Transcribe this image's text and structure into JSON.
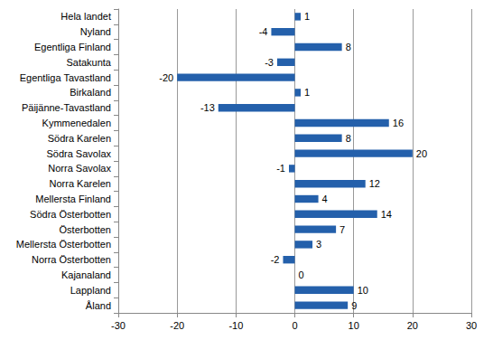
{
  "chart_data": {
    "type": "bar",
    "orientation": "horizontal",
    "categories": [
      "Hela landet",
      "Nyland",
      "Egentliga Finland",
      "Satakunta",
      "Egentliga Tavastland",
      "Birkaland",
      "Päijänne-Tavastland",
      "Kymmenedalen",
      "Södra Karelen",
      "Södra Savolax",
      "Norra Savolax",
      "Norra Karelen",
      "Mellersta Finland",
      "Södra Österbotten",
      "Österbotten",
      "Mellersta Österbotten",
      "Norra Österbotten",
      "Kajanaland",
      "Lappland",
      "Åland"
    ],
    "values": [
      1,
      -4,
      8,
      -3,
      -20,
      1,
      -13,
      16,
      8,
      20,
      -1,
      12,
      4,
      14,
      7,
      3,
      -2,
      0,
      10,
      9
    ],
    "color": "#2460ab",
    "xlim": [
      -30,
      30
    ],
    "xticks": [
      -30,
      -20,
      -10,
      0,
      10,
      20,
      30
    ],
    "grid": true,
    "data_labels": true
  }
}
